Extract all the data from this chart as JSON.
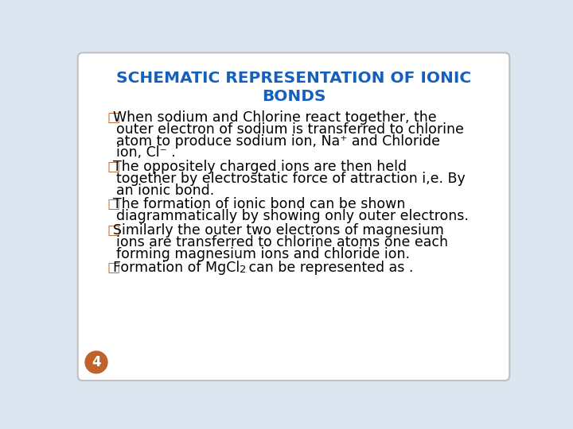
{
  "title_line1": "SCHEMATIC REPRESENTATION OF IONIC",
  "title_line2": "BONDS",
  "title_color": "#1560BD",
  "background_color": "#dce6f0",
  "slide_bg": "#ffffff",
  "bullet_color": "#c0622a",
  "text_color": "#000000",
  "page_num": "4",
  "page_num_bg": "#c0622a",
  "font_size_title": 14.5,
  "font_size_body": 12.5,
  "bullet1_lines": [
    "□When sodium and Chlorine react together, the",
    "  outer electron of sodium is transferred to chlorine",
    "  atom to produce sodium ion, Na⁺ and Chloride",
    "  ion, Cl⁻ ."
  ],
  "bullet2_lines": [
    "□The oppositely charged ions are then held",
    "  together by electrostatic force of attraction i,e. By",
    "  an ionic bond."
  ],
  "bullet3_lines": [
    "□The formation of ionic bond can be shown",
    "  diagrammatically by showing only outer electrons."
  ],
  "bullet4_lines": [
    "□Similarly the outer two electrons of magnesium",
    "  ions are transferred to chlorine atoms one each",
    "  forming magnesium ions and chloride ion."
  ],
  "bullet5_pre": "□Formation of MgCl",
  "bullet5_sub": "2",
  "bullet5_post": " can be represented as ."
}
